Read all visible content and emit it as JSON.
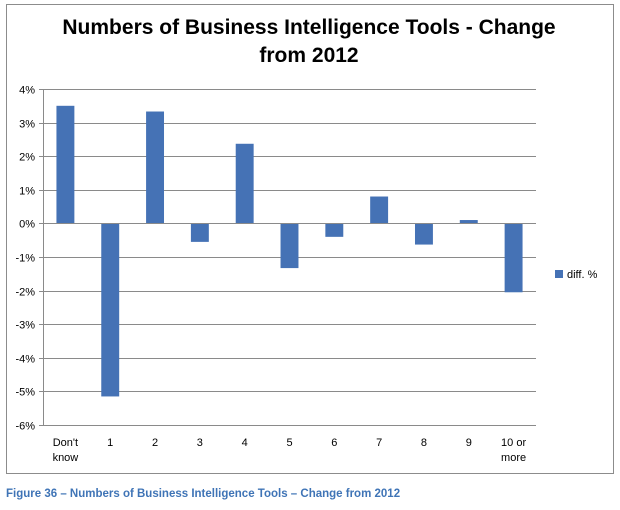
{
  "chart_data": {
    "type": "bar",
    "title_lines": [
      "Numbers of Business Intelligence Tools - Change",
      "from 2012"
    ],
    "categories": [
      [
        "Don't",
        "know"
      ],
      [
        "1"
      ],
      [
        "2"
      ],
      [
        "3"
      ],
      [
        "4"
      ],
      [
        "5"
      ],
      [
        "6"
      ],
      [
        "7"
      ],
      [
        "8"
      ],
      [
        "9"
      ],
      [
        "10 or",
        "more"
      ]
    ],
    "series": [
      {
        "name": "diff. %",
        "color": "#4572b5",
        "values": [
          3.5,
          -5.15,
          3.33,
          -0.55,
          2.37,
          -1.33,
          -0.4,
          0.8,
          -0.63,
          0.1,
          -2.05
        ]
      }
    ],
    "ylim": [
      -6,
      4
    ],
    "yticks": [
      4,
      3,
      2,
      1,
      0,
      -1,
      -2,
      -3,
      -4,
      -5,
      -6
    ],
    "ytick_labels": [
      "4%",
      "3%",
      "2%",
      "1%",
      "0%",
      "-1%",
      "-2%",
      "-3%",
      "-4%",
      "-5%",
      "-6%"
    ],
    "grid": true,
    "legend_position": "right"
  },
  "caption": "Figure 36 – Numbers of Business Intelligence Tools – Change from 2012"
}
